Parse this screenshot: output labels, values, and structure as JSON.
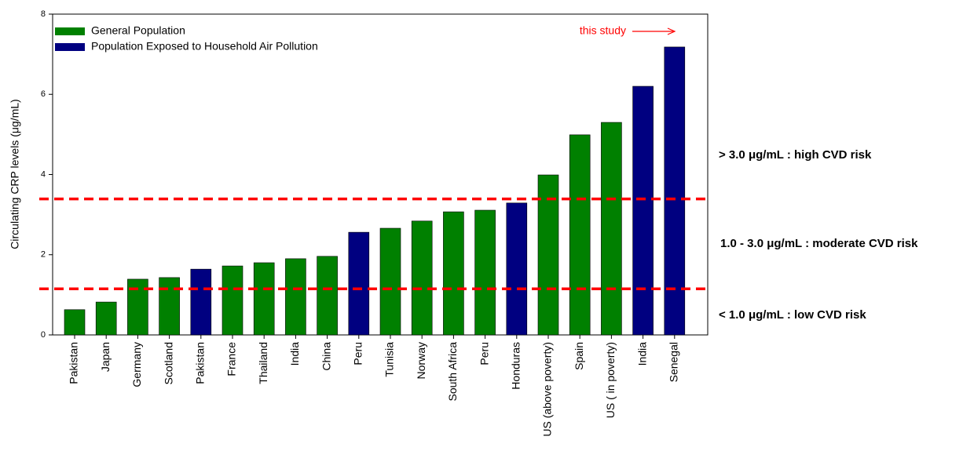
{
  "chart_data": {
    "type": "bar",
    "y_label": "Circulating CRP levels (μg/mL)",
    "categories": [
      "Pakistan",
      "Japan",
      "Germany",
      "Scotland",
      "Pakistan",
      "France",
      "Thailand",
      "India",
      "China",
      "Peru",
      "Tunisia",
      "Norway",
      "South Africa",
      "Peru",
      "Honduras",
      "US (above poverty)",
      "Spain",
      "US ( in poverty)",
      "India",
      "Senegal"
    ],
    "series": [
      {
        "name": "General Population",
        "color": "#008000",
        "values": [
          0.63,
          0.82,
          1.39,
          1.43,
          null,
          1.72,
          1.8,
          1.9,
          1.96,
          null,
          2.66,
          2.84,
          3.07,
          3.11,
          null,
          3.99,
          4.99,
          5.3,
          null,
          null
        ]
      },
      {
        "name": "Population Exposed to Household Air Pollution",
        "color": "#000080",
        "values": [
          null,
          null,
          null,
          null,
          1.64,
          null,
          null,
          null,
          null,
          2.56,
          null,
          null,
          null,
          null,
          3.29,
          null,
          null,
          null,
          6.2,
          7.18
        ]
      }
    ],
    "ylim": [
      0,
      8
    ],
    "yticks": [
      0,
      2,
      4,
      6,
      8
    ],
    "reference_lines": [
      {
        "value": 3.39,
        "color": "#ff0000"
      },
      {
        "value": 1.15,
        "color": "#ff0000"
      }
    ],
    "risk_labels": [
      "> 3.0 μg/mL : high CVD risk",
      "1.0 - 3.0 μg/mL : moderate CVD risk",
      "< 1.0 μg/mL : low CVD risk"
    ],
    "annotation": "this study"
  }
}
